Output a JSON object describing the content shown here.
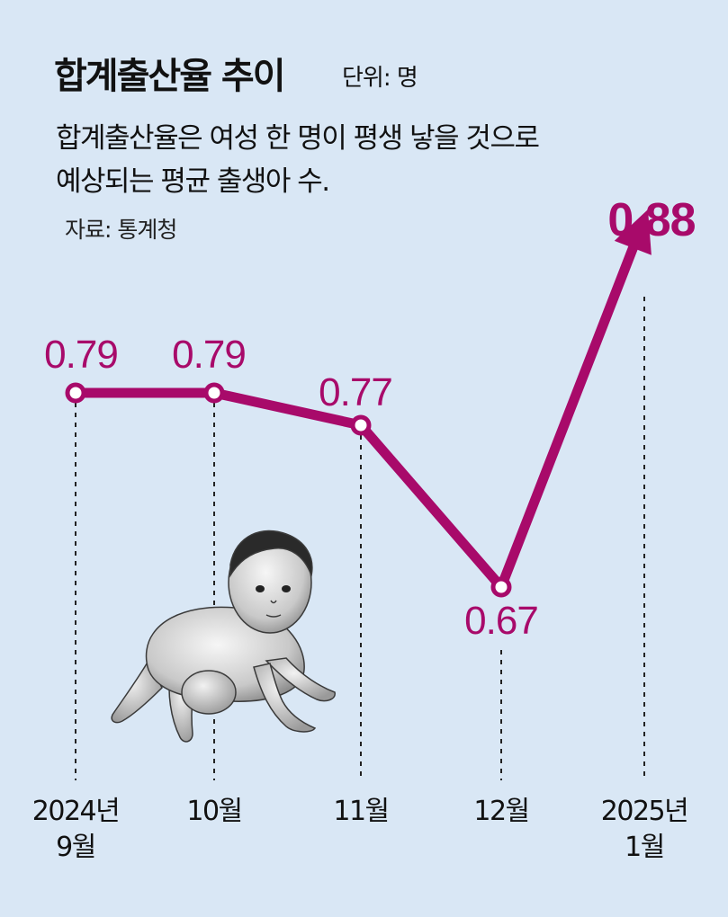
{
  "header": {
    "title": "합계출산율 추이",
    "unit": "단위: 명",
    "subtitle_line1": "합계출산율은 여성 한 명이 평생 낳을 것으로",
    "subtitle_line2": "예상되는 평균 출생아 수.",
    "source": "자료: 통계청"
  },
  "colors": {
    "background": "#d9e7f5",
    "line": "#a80a6a",
    "text": "#111111"
  },
  "chart_data": {
    "type": "line",
    "title": "합계출산율 추이",
    "unit": "단위: 명",
    "categories": [
      [
        "2024년",
        "9월"
      ],
      [
        "10월"
      ],
      [
        "11월"
      ],
      [
        "12월"
      ],
      [
        "2025년",
        "1월"
      ]
    ],
    "values": [
      0.79,
      0.79,
      0.77,
      0.67,
      0.88
    ],
    "value_labels": [
      "0.79",
      "0.79",
      "0.77",
      "0.67",
      "0.88"
    ],
    "last_point_style": "arrow",
    "grid": false,
    "legend": "none"
  }
}
